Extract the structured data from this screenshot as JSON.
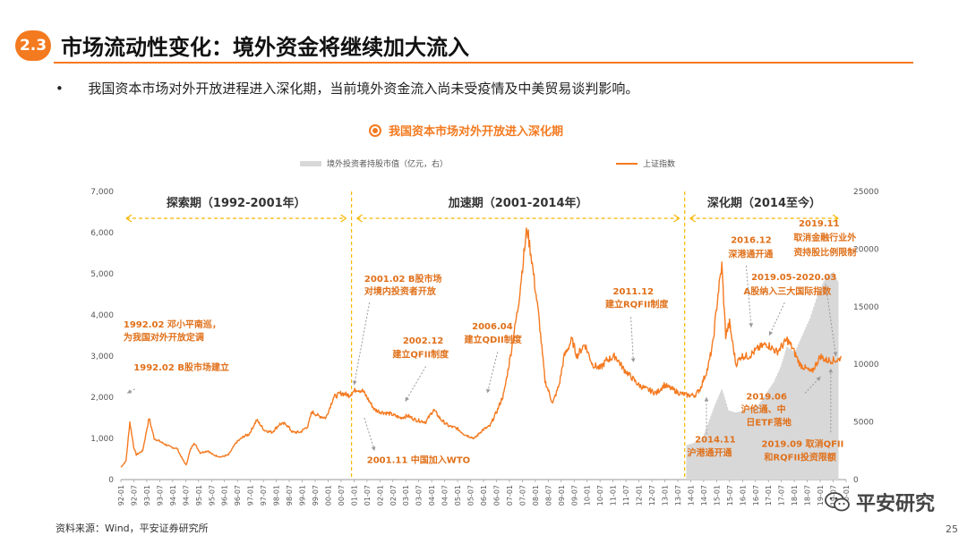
{
  "header": {
    "badge": "2.3",
    "title": "市场流动性变化：境外资金将继续加大流入"
  },
  "bullet_marker": "•",
  "bullet_text": "我国资本市场对外开放进程进入深化期，当前境外资金流入尚未受疫情及中美贸易谈判影响。",
  "source": "资料来源：Wind，平安证券研究所",
  "page_number": "25",
  "watermark": {
    "text": "平安研究",
    "icon": "wechat-icon"
  },
  "colors": {
    "accent": "#F47A20",
    "bars": "#D8D8D8",
    "text_orange": "#E0701A"
  },
  "chart_data": {
    "type": "line",
    "title": "我国资本市场对外开放进入深化期",
    "legend": [
      "境外投资者持股市值（亿元，右）",
      "上证指数"
    ],
    "legend_placement": "top",
    "x_labels": [
      "92-01",
      "92-07",
      "93-01",
      "93-07",
      "94-01",
      "94-07",
      "95-01",
      "95-07",
      "96-01",
      "96-07",
      "97-01",
      "97-07",
      "98-01",
      "98-07",
      "99-01",
      "99-07",
      "00-01",
      "00-07",
      "01-01",
      "01-07",
      "02-01",
      "02-07",
      "03-01",
      "03-07",
      "04-01",
      "04-07",
      "05-01",
      "05-07",
      "06-01",
      "06-07",
      "07-01",
      "07-07",
      "08-01",
      "08-07",
      "09-01",
      "09-07",
      "10-01",
      "10-07",
      "11-01",
      "11-07",
      "12-01",
      "12-07",
      "13-01",
      "13-07",
      "14-01",
      "14-07",
      "15-01",
      "15-07",
      "16-01",
      "16-07",
      "17-01",
      "17-07",
      "18-01",
      "18-07",
      "19-01",
      "19-07",
      "20-01"
    ],
    "left_ylim": [
      0,
      7000
    ],
    "left_yticks": [
      "0",
      "1,000",
      "2,000",
      "3,000",
      "4,000",
      "5,000",
      "6,000",
      "7,000"
    ],
    "right_ylim": [
      0,
      25000
    ],
    "right_yticks": [
      "0",
      "5000",
      "10000",
      "15000",
      "20000",
      "25000"
    ],
    "grid": false,
    "series": [
      {
        "name": "上证指数",
        "axis": "left",
        "x": [
          1992.0,
          1992.2,
          1992.35,
          1992.5,
          1992.6,
          1992.85,
          1993.1,
          1993.3,
          1993.6,
          1993.9,
          1994.2,
          1994.4,
          1994.55,
          1994.7,
          1994.85,
          1995.1,
          1995.4,
          1995.6,
          1995.9,
          1996.2,
          1996.5,
          1996.8,
          1997.0,
          1997.3,
          1997.6,
          1997.9,
          1998.2,
          1998.45,
          1998.7,
          1999.0,
          1999.3,
          1999.45,
          1999.7,
          2000.0,
          2000.3,
          2000.6,
          2000.9,
          2001.2,
          2001.45,
          2001.7,
          2001.9,
          2002.1,
          2002.5,
          2002.9,
          2003.2,
          2003.5,
          2003.9,
          2004.2,
          2004.5,
          2004.8,
          2005.1,
          2005.4,
          2005.8,
          2006.1,
          2006.4,
          2006.7,
          2006.95,
          2007.2,
          2007.5,
          2007.75,
          2007.85,
          2008.0,
          2008.3,
          2008.55,
          2008.85,
          2009.1,
          2009.3,
          2009.6,
          2009.8,
          2010.1,
          2010.4,
          2010.7,
          2010.95,
          2011.3,
          2011.6,
          2011.9,
          2012.2,
          2012.5,
          2012.9,
          2013.2,
          2013.5,
          2013.8,
          2014.1,
          2014.4,
          2014.6,
          2014.9,
          2015.1,
          2015.3,
          2015.45,
          2015.6,
          2015.75,
          2016.0,
          2016.2,
          2016.5,
          2016.9,
          2017.2,
          2017.6,
          2018.0,
          2018.2,
          2018.5,
          2018.95,
          2019.3,
          2019.5,
          2019.8,
          2020.0,
          2020.1
        ],
        "values": [
          300,
          450,
          1400,
          800,
          600,
          700,
          1500,
          1000,
          900,
          800,
          750,
          500,
          350,
          700,
          900,
          650,
          700,
          600,
          550,
          600,
          900,
          1050,
          1100,
          1450,
          1200,
          1150,
          1350,
          1350,
          1150,
          1150,
          1300,
          1650,
          1550,
          1500,
          2000,
          2100,
          2050,
          2200,
          2150,
          1900,
          1700,
          1650,
          1600,
          1500,
          1550,
          1450,
          1400,
          1700,
          1450,
          1300,
          1250,
          1100,
          1000,
          1200,
          1300,
          1700,
          2100,
          3000,
          4200,
          5600,
          6100,
          5500,
          4000,
          2400,
          1850,
          2300,
          3000,
          3400,
          3000,
          3300,
          2800,
          2700,
          2900,
          3000,
          2700,
          2500,
          2300,
          2200,
          2100,
          2300,
          2200,
          2100,
          2050,
          2050,
          2200,
          2700,
          3300,
          4500,
          5200,
          3500,
          3800,
          2800,
          3000,
          3000,
          3200,
          3300,
          3100,
          3400,
          3200,
          2800,
          2600,
          3000,
          2900,
          2900,
          2900,
          3000
        ]
      },
      {
        "name": "境外投资者持股市值（亿元，右）",
        "axis": "right",
        "type": "bar",
        "x": [
          2014.1,
          2014.4,
          2014.7,
          2014.95,
          2015.2,
          2015.45,
          2015.7,
          2016.0,
          2016.3,
          2016.6,
          2016.9,
          2017.2,
          2017.5,
          2017.8,
          2018.0,
          2018.3,
          2018.6,
          2018.9,
          2019.2,
          2019.5,
          2019.8,
          2020.0
        ],
        "values": [
          3000,
          3200,
          3500,
          5000,
          6500,
          7800,
          6000,
          5800,
          6000,
          6200,
          6500,
          7500,
          8500,
          10000,
          11500,
          11000,
          12500,
          14000,
          16000,
          17500,
          18000,
          17000
        ]
      }
    ],
    "periods": [
      {
        "label": "探索期（1992-2001年）",
        "start": 1992.0,
        "end": 2001.0
      },
      {
        "label": "加速期（2001-2014年）",
        "start": 2001.0,
        "end": 2014.0
      },
      {
        "label": "深化期（2014至今）",
        "start": 2014.0,
        "end": 2020.2
      }
    ],
    "annotations": [
      {
        "text": "1992.02 邓小平南巡，",
        "x": 1992.1,
        "y": 3700,
        "align": "left"
      },
      {
        "text": "为我国对外开放定调",
        "x": 1992.1,
        "y": 3380,
        "align": "left"
      },
      {
        "text": "1992.02 B股市场建立",
        "x": 1992.5,
        "y": 2650,
        "align": "left"
      },
      {
        "text": "2001.02 B股市场",
        "x": 2001.5,
        "y": 4800,
        "align": "left"
      },
      {
        "text": "对境内投资者开放",
        "x": 2001.5,
        "y": 4500,
        "align": "left"
      },
      {
        "text": "2002.12",
        "x": 2003.0,
        "y": 3300,
        "align": "left"
      },
      {
        "text": "建立QFII制度",
        "x": 2002.6,
        "y": 2970,
        "align": "left"
      },
      {
        "text": "2006.04",
        "x": 2005.7,
        "y": 3650,
        "align": "left"
      },
      {
        "text": "建立QDII制度",
        "x": 2005.4,
        "y": 3330,
        "align": "left"
      },
      {
        "text": "2001.11 中国加入WTO",
        "x": 2001.6,
        "y": 400,
        "align": "left"
      },
      {
        "text": "2011.12",
        "x": 2011.2,
        "y": 4500,
        "align": "left"
      },
      {
        "text": "建立RQFII制度",
        "x": 2010.9,
        "y": 4180,
        "align": "left"
      },
      {
        "text": "2016.12",
        "x": 2015.8,
        "y": 5750,
        "align": "left"
      },
      {
        "text": "深港通开通",
        "x": 2015.7,
        "y": 5400,
        "align": "left"
      },
      {
        "text": "2019.11",
        "x": 2018.45,
        "y": 6150,
        "align": "left"
      },
      {
        "text": "取消金融行业外",
        "x": 2018.25,
        "y": 5800,
        "align": "left"
      },
      {
        "text": "资持股比例限制",
        "x": 2018.25,
        "y": 5450,
        "align": "left"
      },
      {
        "text": "2019.05-2020.03",
        "x": 2016.6,
        "y": 4850,
        "align": "left"
      },
      {
        "text": "A股纳入三大国际指数",
        "x": 2016.3,
        "y": 4500,
        "align": "left"
      },
      {
        "text": "2019.06",
        "x": 2016.4,
        "y": 1950,
        "align": "left"
      },
      {
        "text": "沪伦通、中",
        "x": 2016.2,
        "y": 1630,
        "align": "left"
      },
      {
        "text": "日ETF落地",
        "x": 2016.4,
        "y": 1310,
        "align": "left"
      },
      {
        "text": "2014.11",
        "x": 2014.4,
        "y": 900,
        "align": "left"
      },
      {
        "text": "沪港通开通",
        "x": 2014.1,
        "y": 580,
        "align": "left"
      },
      {
        "text": "2019.09 取消QFII",
        "x": 2017.0,
        "y": 790,
        "align": "left"
      },
      {
        "text": "和RQFII投资限额",
        "x": 2017.1,
        "y": 470,
        "align": "left"
      }
    ],
    "arrows": [
      {
        "from": [
          1992.55,
          2200
        ],
        "to": [
          1992.25,
          2100
        ]
      },
      {
        "from": [
          2001.7,
          4300
        ],
        "to": [
          2001.1,
          2300
        ]
      },
      {
        "from": [
          2001.5,
          1500
        ],
        "to": [
          2001.9,
          700
        ]
      },
      {
        "from": [
          2003.9,
          2750
        ],
        "to": [
          2003.1,
          1900
        ]
      },
      {
        "from": [
          2006.7,
          3100
        ],
        "to": [
          2006.3,
          2100
        ]
      },
      {
        "from": [
          2011.9,
          3950
        ],
        "to": [
          2012.0,
          2850
        ]
      },
      {
        "from": [
          2016.4,
          5200
        ],
        "to": [
          2016.6,
          3700
        ]
      },
      {
        "from": [
          2017.9,
          4300
        ],
        "to": [
          2017.3,
          3500
        ]
      },
      {
        "from": [
          2019.5,
          4750
        ],
        "to": [
          2019.9,
          3000
        ]
      },
      {
        "from": [
          2018.7,
          2100
        ],
        "to": [
          2019.3,
          2500
        ]
      },
      {
        "from": [
          2014.85,
          1100
        ],
        "to": [
          2014.85,
          2000
        ]
      },
      {
        "from": [
          2019.7,
          1150
        ],
        "to": [
          2019.7,
          2700
        ]
      }
    ]
  }
}
